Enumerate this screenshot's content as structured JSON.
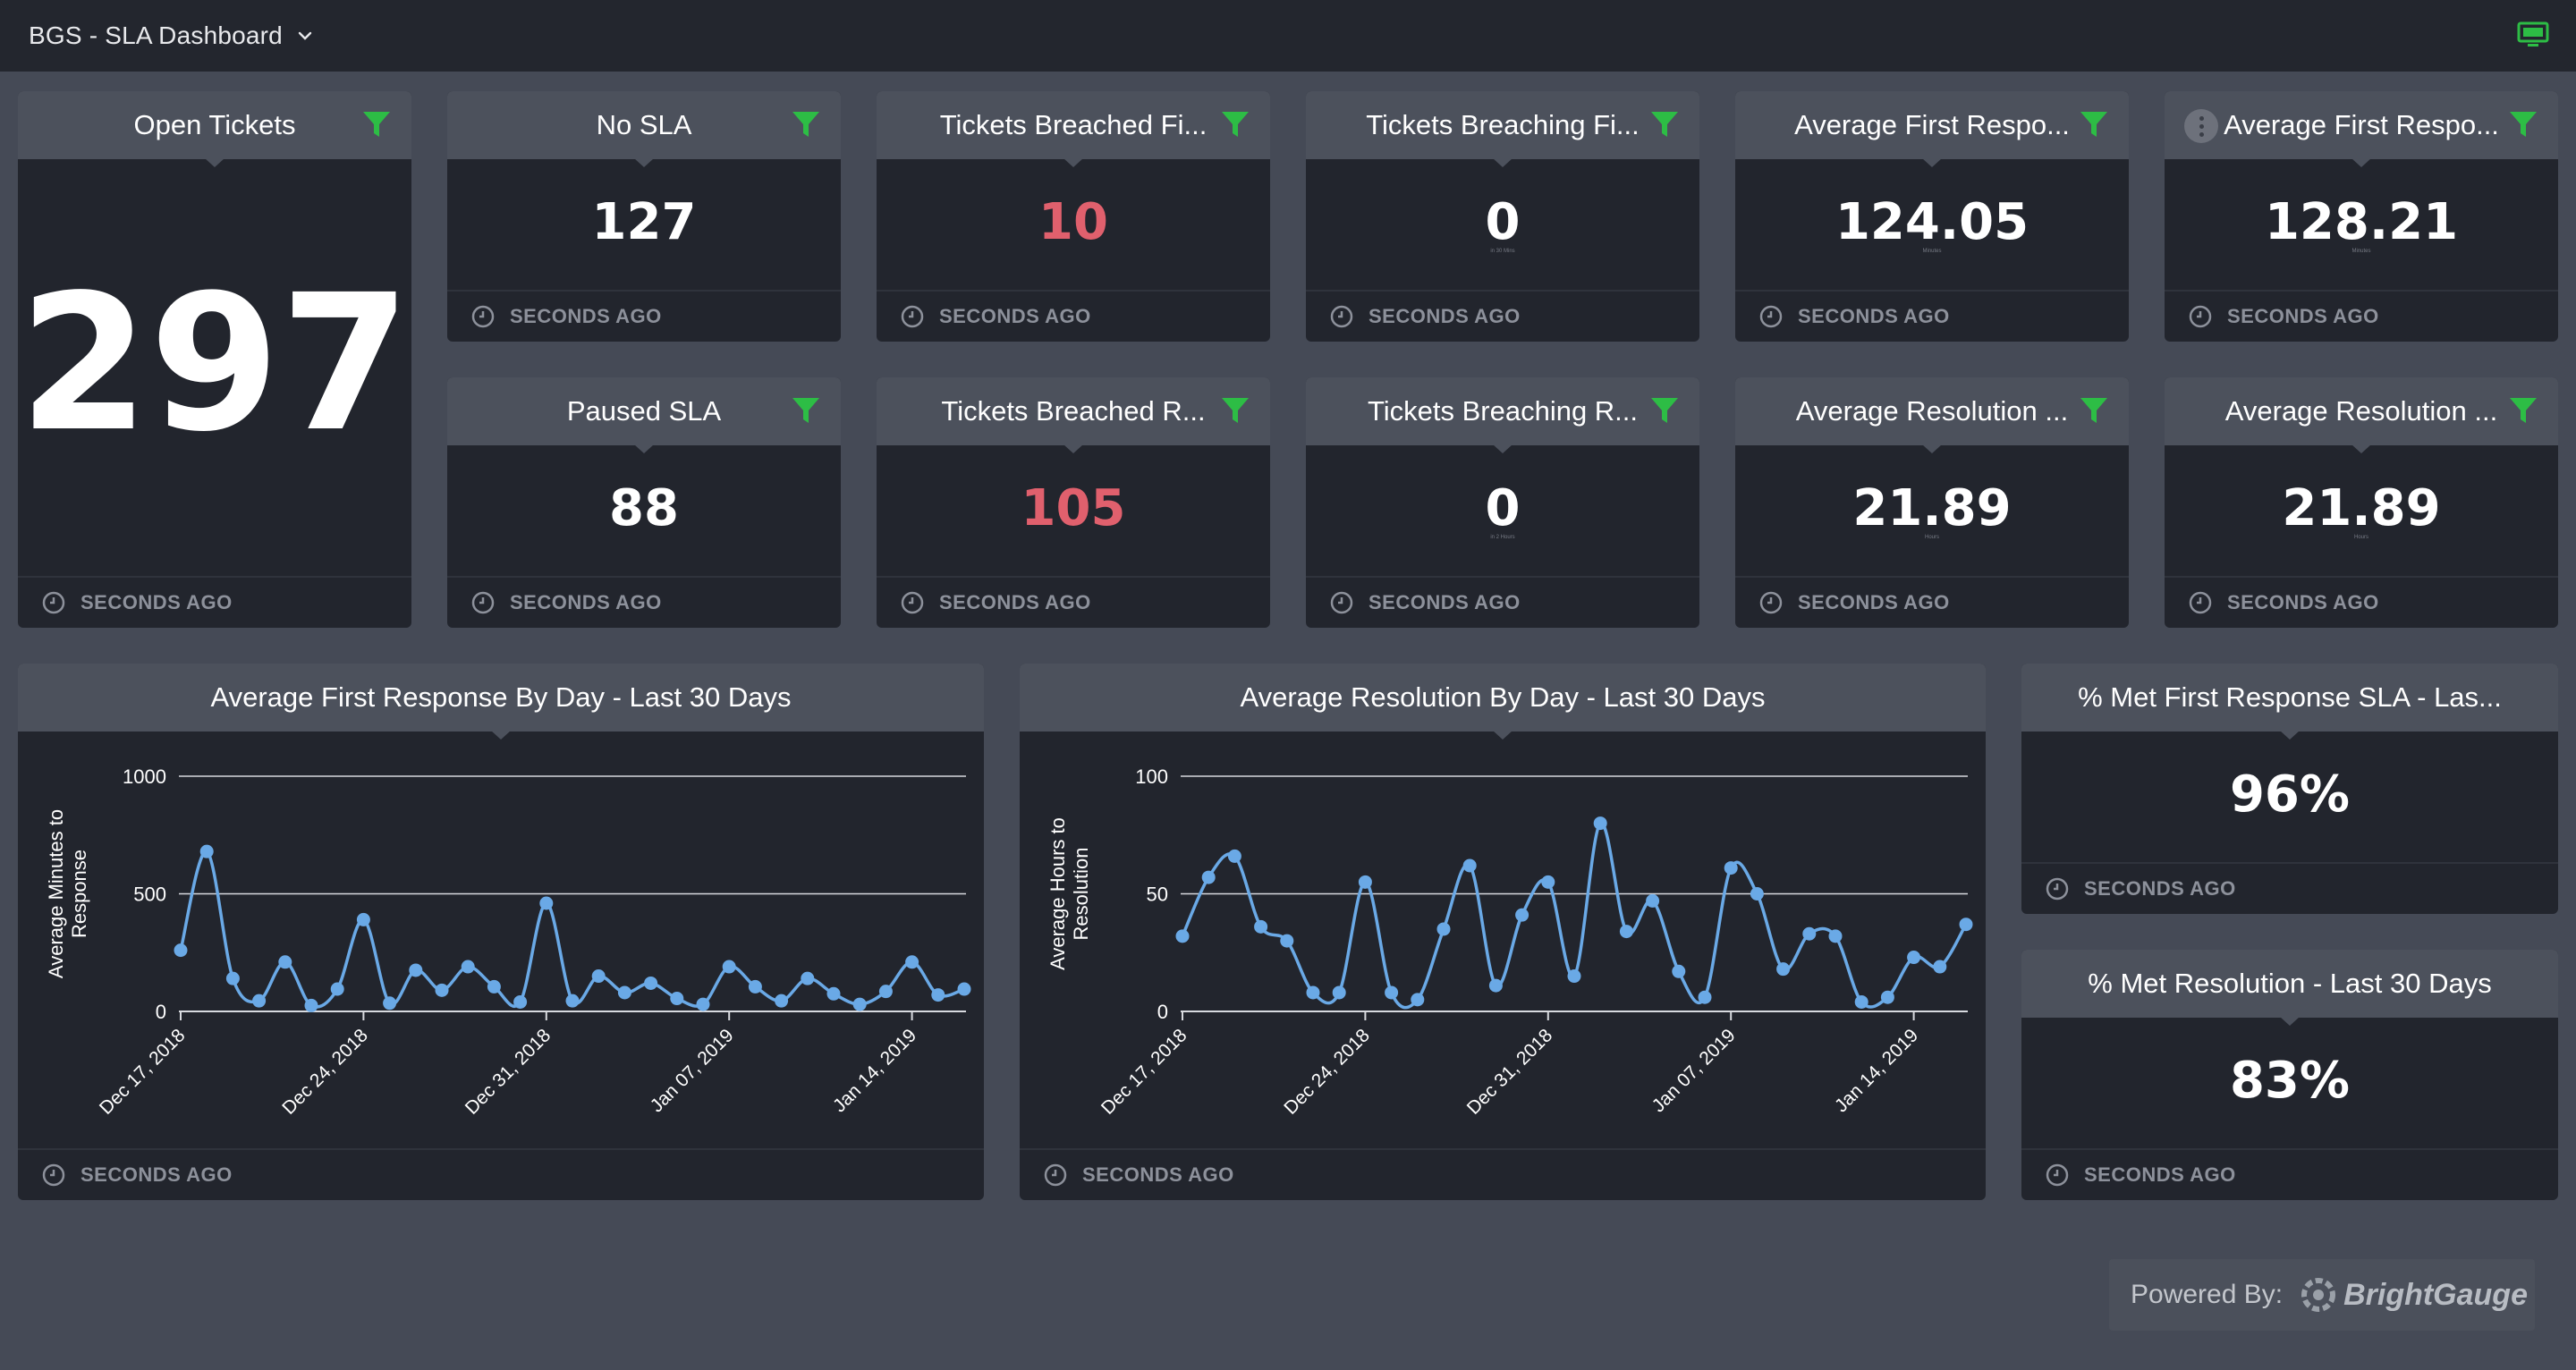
{
  "header": {
    "dashboard_title": "BGS - SLA Dashboard",
    "dropdown_icon": "chevron-down-icon",
    "tv_mode_icon": "monitor-icon"
  },
  "colors": {
    "accent_green": "#2dbd45",
    "alert_red": "#e0606d",
    "line_blue": "#6aa9e6",
    "header_bg": "#23262e",
    "page_bg": "#454a56",
    "card_bg": "#22252d",
    "card_title_bg": "#4c515c"
  },
  "footer_text": "SECONDS AGO",
  "gauges": {
    "open_tickets": {
      "title": "Open Tickets",
      "value": "297"
    },
    "no_sla": {
      "title": "No SLA",
      "value": "127"
    },
    "breached_first": {
      "title": "Tickets Breached Fi...",
      "value": "10"
    },
    "breaching_first": {
      "title": "Tickets Breaching Fi...",
      "value": "0",
      "sub": "in 30 Mins"
    },
    "avg_first_1": {
      "title": "Average First Respo...",
      "value": "124.05",
      "sub": "Minutes"
    },
    "avg_first_2": {
      "title": "Average First Respo...",
      "value": "128.21",
      "sub": "Minutes"
    },
    "paused_sla": {
      "title": "Paused SLA",
      "value": "88"
    },
    "breached_res": {
      "title": "Tickets Breached R...",
      "value": "105"
    },
    "breaching_res": {
      "title": "Tickets Breaching R...",
      "value": "0",
      "sub": "in 2 Hours"
    },
    "avg_res_1": {
      "title": "Average Resolution ...",
      "value": "21.89",
      "sub": "Hours"
    },
    "avg_res_2": {
      "title": "Average Resolution ...",
      "value": "21.89",
      "sub": "Hours"
    },
    "met_first": {
      "title": "% Met First Response SLA - Las...",
      "value": "96%"
    },
    "met_res": {
      "title": "% Met Resolution - Last 30 Days",
      "value": "83%"
    }
  },
  "charts": {
    "first_response": {
      "title": "Average First Response By Day - Last 30 Days"
    },
    "resolution": {
      "title": "Average Resolution By Day - Last 30 Days"
    }
  },
  "chart_data": [
    {
      "type": "line",
      "title": "Average First Response By Day - Last 30 Days",
      "ylabel": "Average Minutes to Response",
      "xlabel": "",
      "ylim": [
        0,
        1000
      ],
      "yticks": [
        0,
        500,
        1000
      ],
      "x_tick_labels": [
        "Dec 17, 2018",
        "Dec 24, 2018",
        "Dec 31, 2018",
        "Jan 07, 2019",
        "Jan 14, 2019"
      ],
      "x_tick_index": [
        0,
        7,
        14,
        21,
        28
      ],
      "grid": true,
      "series": [
        {
          "values": [
            260,
            680,
            140,
            45,
            210,
            25,
            95,
            390,
            35,
            175,
            90,
            190,
            105,
            40,
            460,
            45,
            150,
            80,
            120,
            55,
            30,
            190,
            105,
            45,
            140,
            75,
            30,
            85,
            210,
            70,
            95
          ]
        }
      ]
    },
    {
      "type": "line",
      "title": "Average Resolution By Day - Last 30 Days",
      "ylabel": "Average Hours to Resolution",
      "xlabel": "",
      "ylim": [
        0,
        100
      ],
      "yticks": [
        0,
        50,
        100
      ],
      "x_tick_labels": [
        "Dec 17, 2018",
        "Dec 24, 2018",
        "Dec 31, 2018",
        "Jan 07, 2019",
        "Jan 14, 2019"
      ],
      "x_tick_index": [
        0,
        7,
        14,
        21,
        28
      ],
      "grid": true,
      "series": [
        {
          "values": [
            32,
            57,
            66,
            36,
            30,
            8,
            8,
            55,
            8,
            5,
            35,
            62,
            11,
            41,
            55,
            15,
            80,
            34,
            47,
            17,
            6,
            61,
            50,
            18,
            33,
            32,
            4,
            6,
            23,
            19,
            37
          ]
        }
      ]
    }
  ]
}
